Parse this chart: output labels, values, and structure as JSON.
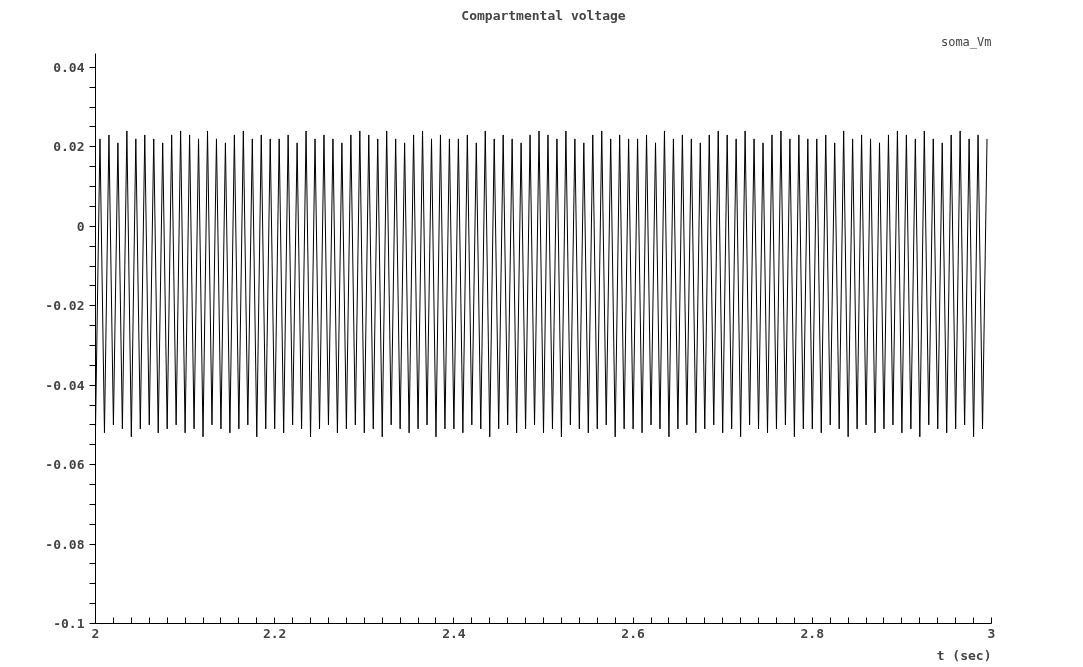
{
  "chart_data": {
    "type": "line",
    "title": "Compartmental voltage",
    "xlabel": "t (sec)",
    "xlim": [
      2,
      3
    ],
    "ylim": [
      -0.1,
      0.0435
    ],
    "xticks": [
      2,
      {
        "value": 2.02,
        "label": null
      },
      {
        "value": 2.04,
        "label": null
      },
      {
        "value": 2.06,
        "label": null
      },
      {
        "value": 2.08,
        "label": null
      },
      {
        "value": 2.1,
        "label": null
      },
      {
        "value": 2.12,
        "label": null
      },
      {
        "value": 2.14,
        "label": null
      },
      {
        "value": 2.16,
        "label": null
      },
      {
        "value": 2.18,
        "label": null
      },
      2.2,
      {
        "value": 2.22,
        "label": null
      },
      {
        "value": 2.24,
        "label": null
      },
      {
        "value": 2.26,
        "label": null
      },
      {
        "value": 2.28,
        "label": null
      },
      {
        "value": 2.3,
        "label": null
      },
      {
        "value": 2.32,
        "label": null
      },
      {
        "value": 2.34,
        "label": null
      },
      {
        "value": 2.36,
        "label": null
      },
      {
        "value": 2.38,
        "label": null
      },
      2.4,
      {
        "value": 2.42,
        "label": null
      },
      {
        "value": 2.44,
        "label": null
      },
      {
        "value": 2.46,
        "label": null
      },
      {
        "value": 2.48,
        "label": null
      },
      {
        "value": 2.5,
        "label": null
      },
      {
        "value": 2.52,
        "label": null
      },
      {
        "value": 2.54,
        "label": null
      },
      {
        "value": 2.56,
        "label": null
      },
      {
        "value": 2.58,
        "label": null
      },
      2.6,
      {
        "value": 2.62,
        "label": null
      },
      {
        "value": 2.64,
        "label": null
      },
      {
        "value": 2.66,
        "label": null
      },
      {
        "value": 2.68,
        "label": null
      },
      {
        "value": 2.7,
        "label": null
      },
      {
        "value": 2.72,
        "label": null
      },
      {
        "value": 2.74,
        "label": null
      },
      {
        "value": 2.76,
        "label": null
      },
      {
        "value": 2.78,
        "label": null
      },
      2.8,
      {
        "value": 2.82,
        "label": null
      },
      {
        "value": 2.84,
        "label": null
      },
      {
        "value": 2.86,
        "label": null
      },
      {
        "value": 2.88,
        "label": null
      },
      {
        "value": 2.9,
        "label": null
      },
      {
        "value": 2.92,
        "label": null
      },
      {
        "value": 2.94,
        "label": null
      },
      {
        "value": 2.96,
        "label": null
      },
      {
        "value": 2.98,
        "label": null
      },
      3
    ],
    "yticks": [
      -0.1,
      {
        "value": -0.095,
        "label": null
      },
      {
        "value": -0.09,
        "label": null
      },
      {
        "value": -0.085,
        "label": null
      },
      -0.08,
      {
        "value": -0.075,
        "label": null
      },
      {
        "value": -0.07,
        "label": null
      },
      {
        "value": -0.065,
        "label": null
      },
      -0.06,
      {
        "value": -0.055,
        "label": null
      },
      {
        "value": -0.05,
        "label": null
      },
      {
        "value": -0.045,
        "label": null
      },
      -0.04,
      {
        "value": -0.035,
        "label": null
      },
      {
        "value": -0.03,
        "label": null
      },
      {
        "value": -0.025,
        "label": null
      },
      -0.02,
      {
        "value": -0.015,
        "label": null
      },
      {
        "value": -0.01,
        "label": null
      },
      {
        "value": -0.005,
        "label": null
      },
      0,
      {
        "value": 0.005,
        "label": null
      },
      {
        "value": 0.01,
        "label": null
      },
      {
        "value": 0.015,
        "label": null
      },
      0.02,
      {
        "value": 0.025,
        "label": null
      },
      {
        "value": 0.03,
        "label": null
      },
      {
        "value": 0.035,
        "label": null
      },
      0.04
    ],
    "grid": false,
    "legend": false,
    "marker": "none",
    "line_style": "solid",
    "series": [
      {
        "name": "soma_Vm",
        "color": "#000000",
        "x": [
          2.0,
          2.005,
          2.01,
          2.015,
          2.02,
          2.025,
          2.03,
          2.035,
          2.04,
          2.045,
          2.05,
          2.055,
          2.06,
          2.065,
          2.07,
          2.075,
          2.08,
          2.085,
          2.09,
          2.095,
          2.1,
          2.105,
          2.11,
          2.115,
          2.12,
          2.125,
          2.13,
          2.135,
          2.14,
          2.145,
          2.15,
          2.155,
          2.16,
          2.165,
          2.17,
          2.175,
          2.18,
          2.185,
          2.19,
          2.195,
          2.2,
          2.205,
          2.21,
          2.215,
          2.22,
          2.225,
          2.23,
          2.235,
          2.24,
          2.245,
          2.25,
          2.255,
          2.26,
          2.265,
          2.27,
          2.275,
          2.28,
          2.285,
          2.29,
          2.295,
          2.3,
          2.305,
          2.31,
          2.315,
          2.32,
          2.325,
          2.33,
          2.335,
          2.34,
          2.345,
          2.35,
          2.355,
          2.36,
          2.365,
          2.37,
          2.375,
          2.38,
          2.385,
          2.39,
          2.395,
          2.4,
          2.405,
          2.41,
          2.415,
          2.42,
          2.425,
          2.43,
          2.435,
          2.44,
          2.445,
          2.45,
          2.455,
          2.46,
          2.465,
          2.47,
          2.475,
          2.48,
          2.485,
          2.49,
          2.495,
          2.5,
          2.505,
          2.51,
          2.515,
          2.52,
          2.525,
          2.53,
          2.535,
          2.54,
          2.545,
          2.55,
          2.555,
          2.56,
          2.565,
          2.57,
          2.575,
          2.58,
          2.585,
          2.59,
          2.595,
          2.6,
          2.605,
          2.61,
          2.615,
          2.62,
          2.625,
          2.63,
          2.635,
          2.64,
          2.645,
          2.65,
          2.655,
          2.66,
          2.665,
          2.67,
          2.675,
          2.68,
          2.685,
          2.69,
          2.695,
          2.7,
          2.705,
          2.71,
          2.715,
          2.72,
          2.725,
          2.73,
          2.735,
          2.74,
          2.745,
          2.75,
          2.755,
          2.76,
          2.765,
          2.77,
          2.775,
          2.78,
          2.785,
          2.79,
          2.795,
          2.8,
          2.805,
          2.81,
          2.815,
          2.82,
          2.825,
          2.83,
          2.835,
          2.84,
          2.845,
          2.85,
          2.855,
          2.86,
          2.865,
          2.87,
          2.875,
          2.88,
          2.885,
          2.89,
          2.895,
          2.9,
          2.905,
          2.91,
          2.915,
          2.92,
          2.925,
          2.93,
          2.935,
          2.94,
          2.945,
          2.95,
          2.955,
          2.96,
          2.965,
          2.97,
          2.975,
          2.98,
          2.985,
          2.99,
          2.995
        ],
        "values": [
          -0.051,
          0.022,
          -0.052,
          0.023,
          -0.05,
          0.021,
          -0.051,
          0.024,
          -0.053,
          0.022,
          -0.051,
          0.023,
          -0.05,
          0.022,
          -0.052,
          0.021,
          -0.051,
          0.023,
          -0.05,
          0.024,
          -0.052,
          0.023,
          -0.051,
          0.022,
          -0.053,
          0.024,
          -0.05,
          0.022,
          -0.051,
          0.021,
          -0.052,
          0.023,
          -0.051,
          0.024,
          -0.05,
          0.022,
          -0.053,
          0.023,
          -0.051,
          0.022,
          -0.051,
          0.022,
          -0.052,
          0.023,
          -0.05,
          0.021,
          -0.051,
          0.024,
          -0.053,
          0.022,
          -0.051,
          0.023,
          -0.05,
          0.022,
          -0.052,
          0.021,
          -0.051,
          0.023,
          -0.05,
          0.024,
          -0.052,
          0.023,
          -0.051,
          0.022,
          -0.053,
          0.024,
          -0.05,
          0.022,
          -0.051,
          0.021,
          -0.052,
          0.023,
          -0.051,
          0.024,
          -0.05,
          0.022,
          -0.053,
          0.023,
          -0.051,
          0.022,
          -0.051,
          0.022,
          -0.052,
          0.023,
          -0.05,
          0.021,
          -0.051,
          0.024,
          -0.053,
          0.022,
          -0.051,
          0.023,
          -0.05,
          0.022,
          -0.052,
          0.021,
          -0.051,
          0.023,
          -0.05,
          0.024,
          -0.052,
          0.023,
          -0.051,
          0.022,
          -0.053,
          0.024,
          -0.05,
          0.022,
          -0.051,
          0.021,
          -0.052,
          0.023,
          -0.051,
          0.024,
          -0.05,
          0.022,
          -0.053,
          0.023,
          -0.051,
          0.022,
          -0.051,
          0.022,
          -0.052,
          0.023,
          -0.05,
          0.021,
          -0.051,
          0.024,
          -0.053,
          0.022,
          -0.051,
          0.023,
          -0.05,
          0.022,
          -0.052,
          0.021,
          -0.051,
          0.023,
          -0.05,
          0.024,
          -0.052,
          0.023,
          -0.051,
          0.022,
          -0.053,
          0.024,
          -0.05,
          0.022,
          -0.051,
          0.021,
          -0.052,
          0.023,
          -0.051,
          0.024,
          -0.05,
          0.022,
          -0.053,
          0.023,
          -0.051,
          0.022,
          -0.051,
          0.022,
          -0.052,
          0.023,
          -0.05,
          0.021,
          -0.051,
          0.024,
          -0.053,
          0.022,
          -0.051,
          0.023,
          -0.05,
          0.022,
          -0.052,
          0.021,
          -0.051,
          0.023,
          -0.05,
          0.024,
          -0.052,
          0.023,
          -0.051,
          0.022,
          -0.053,
          0.024,
          -0.05,
          0.022,
          -0.051,
          0.021,
          -0.052,
          0.023,
          -0.051,
          0.024,
          -0.05,
          0.022,
          -0.053,
          0.023,
          -0.051,
          0.022
        ]
      }
    ]
  }
}
